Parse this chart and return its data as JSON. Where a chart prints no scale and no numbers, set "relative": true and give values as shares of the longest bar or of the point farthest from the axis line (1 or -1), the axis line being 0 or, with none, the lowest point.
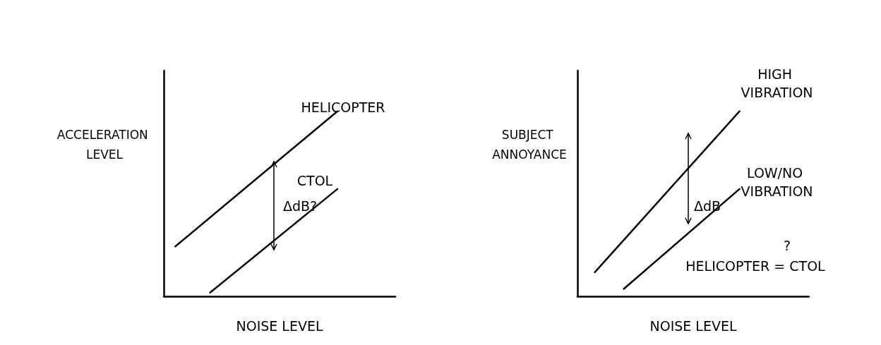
{
  "chart_data": [
    {
      "type": "line",
      "relative": true,
      "xlabel": "NOISE LEVEL",
      "ylabel": "ACCELERATION LEVEL",
      "categories": [
        null,
        null,
        null,
        null,
        null,
        null,
        null,
        null,
        null,
        null,
        null,
        null,
        null,
        null,
        null,
        null,
        null,
        null,
        null,
        null,
        null,
        null,
        null,
        null,
        null,
        null,
        null,
        null,
        null,
        null,
        null,
        null,
        null,
        null,
        null,
        null,
        null,
        null,
        null,
        null,
        null
      ],
      "series": [
        {
          "name": "HELICOPTER",
          "color": "#000000",
          "values": [
            null,
            null,
            0.27,
            null,
            null,
            null,
            null,
            null,
            null,
            null,
            null,
            null,
            null,
            null,
            null,
            null,
            null,
            null,
            null,
            null,
            null,
            null,
            null,
            null,
            null,
            null,
            null,
            null,
            null,
            null,
            1,
            null,
            null,
            null,
            null,
            null,
            null,
            null,
            null,
            null,
            null
          ]
        },
        {
          "name": "CTOL",
          "color": "#000000",
          "values": [
            null,
            null,
            null,
            null,
            null,
            null,
            null,
            null,
            0.02,
            null,
            null,
            null,
            null,
            null,
            null,
            null,
            null,
            null,
            null,
            null,
            null,
            null,
            null,
            null,
            null,
            null,
            null,
            null,
            null,
            null,
            0.58,
            null,
            null,
            null,
            null,
            null,
            null,
            null,
            null,
            null,
            null
          ]
        }
      ],
      "annotations": [
        "ΔdB?"
      ]
    },
    {
      "type": "line",
      "relative": true,
      "xlabel": "NOISE LEVEL",
      "ylabel": "SUBJECT ANNOYANCE",
      "categories": [
        null,
        null,
        null,
        null,
        null,
        null,
        null,
        null,
        null,
        null,
        null,
        null,
        null,
        null,
        null,
        null,
        null,
        null,
        null,
        null,
        null,
        null,
        null,
        null,
        null,
        null,
        null,
        null,
        null,
        null,
        null,
        null,
        null,
        null,
        null,
        null,
        null,
        null,
        null,
        null,
        null
      ],
      "series": [
        {
          "name": "HIGH VIBRATION",
          "color": "#000000",
          "values": [
            null,
            null,
            null,
            0.13,
            null,
            null,
            null,
            null,
            null,
            null,
            null,
            null,
            null,
            null,
            null,
            null,
            null,
            null,
            null,
            null,
            null,
            null,
            null,
            null,
            null,
            null,
            null,
            null,
            1,
            null,
            null,
            null,
            null,
            null,
            null,
            null,
            null,
            null,
            null,
            null,
            null
          ]
        },
        {
          "name": "LOW/NO VIBRATION",
          "color": "#000000",
          "values": [
            null,
            null,
            null,
            null,
            null,
            null,
            null,
            null,
            0.04,
            null,
            null,
            null,
            null,
            null,
            null,
            null,
            null,
            null,
            null,
            null,
            null,
            null,
            null,
            null,
            null,
            null,
            null,
            null,
            0.58,
            null,
            null,
            null,
            null,
            null,
            null,
            null,
            null,
            null,
            null,
            null,
            null
          ]
        }
      ],
      "annotations": [
        "ΔdB",
        "?",
        "HELICOPTER = CTOL"
      ]
    }
  ]
}
